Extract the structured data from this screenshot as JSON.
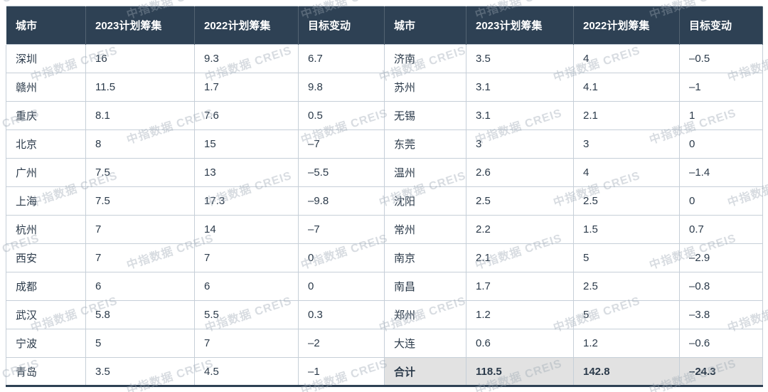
{
  "watermark": {
    "text": "中指数据 CREIS"
  },
  "colors": {
    "header_bg": "#2e4154",
    "header_text": "#ffffff",
    "body_text": "#2b3a4a",
    "border": "#c6cfd8",
    "total_bg": "#e2e2e2",
    "watermark": "#9aa6b2"
  },
  "chart_data": {
    "type": "table",
    "layout": "two-paired-city-tables",
    "headers": [
      "城市",
      "2023计划筹集",
      "2022计划筹集",
      "目标变动",
      "城市",
      "2023计划筹集",
      "2022计划筹集",
      "目标变动"
    ],
    "left_rows": [
      [
        "深圳",
        "16",
        "9.3",
        "6.7"
      ],
      [
        "赣州",
        "11.5",
        "1.7",
        "9.8"
      ],
      [
        "重庆",
        "8.1",
        "7.6",
        "0.5"
      ],
      [
        "北京",
        "8",
        "15",
        "–7"
      ],
      [
        "广州",
        "7.5",
        "13",
        "–5.5"
      ],
      [
        "上海",
        "7.5",
        "17.3",
        "–9.8"
      ],
      [
        "杭州",
        "7",
        "14",
        "–7"
      ],
      [
        "西安",
        "7",
        "7",
        "0"
      ],
      [
        "成都",
        "6",
        "6",
        "0"
      ],
      [
        "武汉",
        "5.8",
        "5.5",
        "0.3"
      ],
      [
        "宁波",
        "5",
        "7",
        "–2"
      ],
      [
        "青岛",
        "3.5",
        "4.5",
        "–1"
      ]
    ],
    "right_rows": [
      [
        "济南",
        "3.5",
        "4",
        "–0.5"
      ],
      [
        "苏州",
        "3.1",
        "4.1",
        "–1"
      ],
      [
        "无锡",
        "3.1",
        "2.1",
        "1"
      ],
      [
        "东莞",
        "3",
        "3",
        "0"
      ],
      [
        "温州",
        "2.6",
        "4",
        "–1.4"
      ],
      [
        "沈阳",
        "2.5",
        "2.5",
        "0"
      ],
      [
        "常州",
        "2.2",
        "1.5",
        "0.7"
      ],
      [
        "南京",
        "2.1",
        "5",
        "–2.9"
      ],
      [
        "南昌",
        "1.7",
        "2.5",
        "–0.8"
      ],
      [
        "郑州",
        "1.2",
        "5",
        "–3.8"
      ],
      [
        "大连",
        "0.6",
        "1.2",
        "–0.6"
      ],
      [
        "合计",
        "118.5",
        "142.8",
        "–24.3"
      ]
    ],
    "total_row_label": "合计"
  }
}
